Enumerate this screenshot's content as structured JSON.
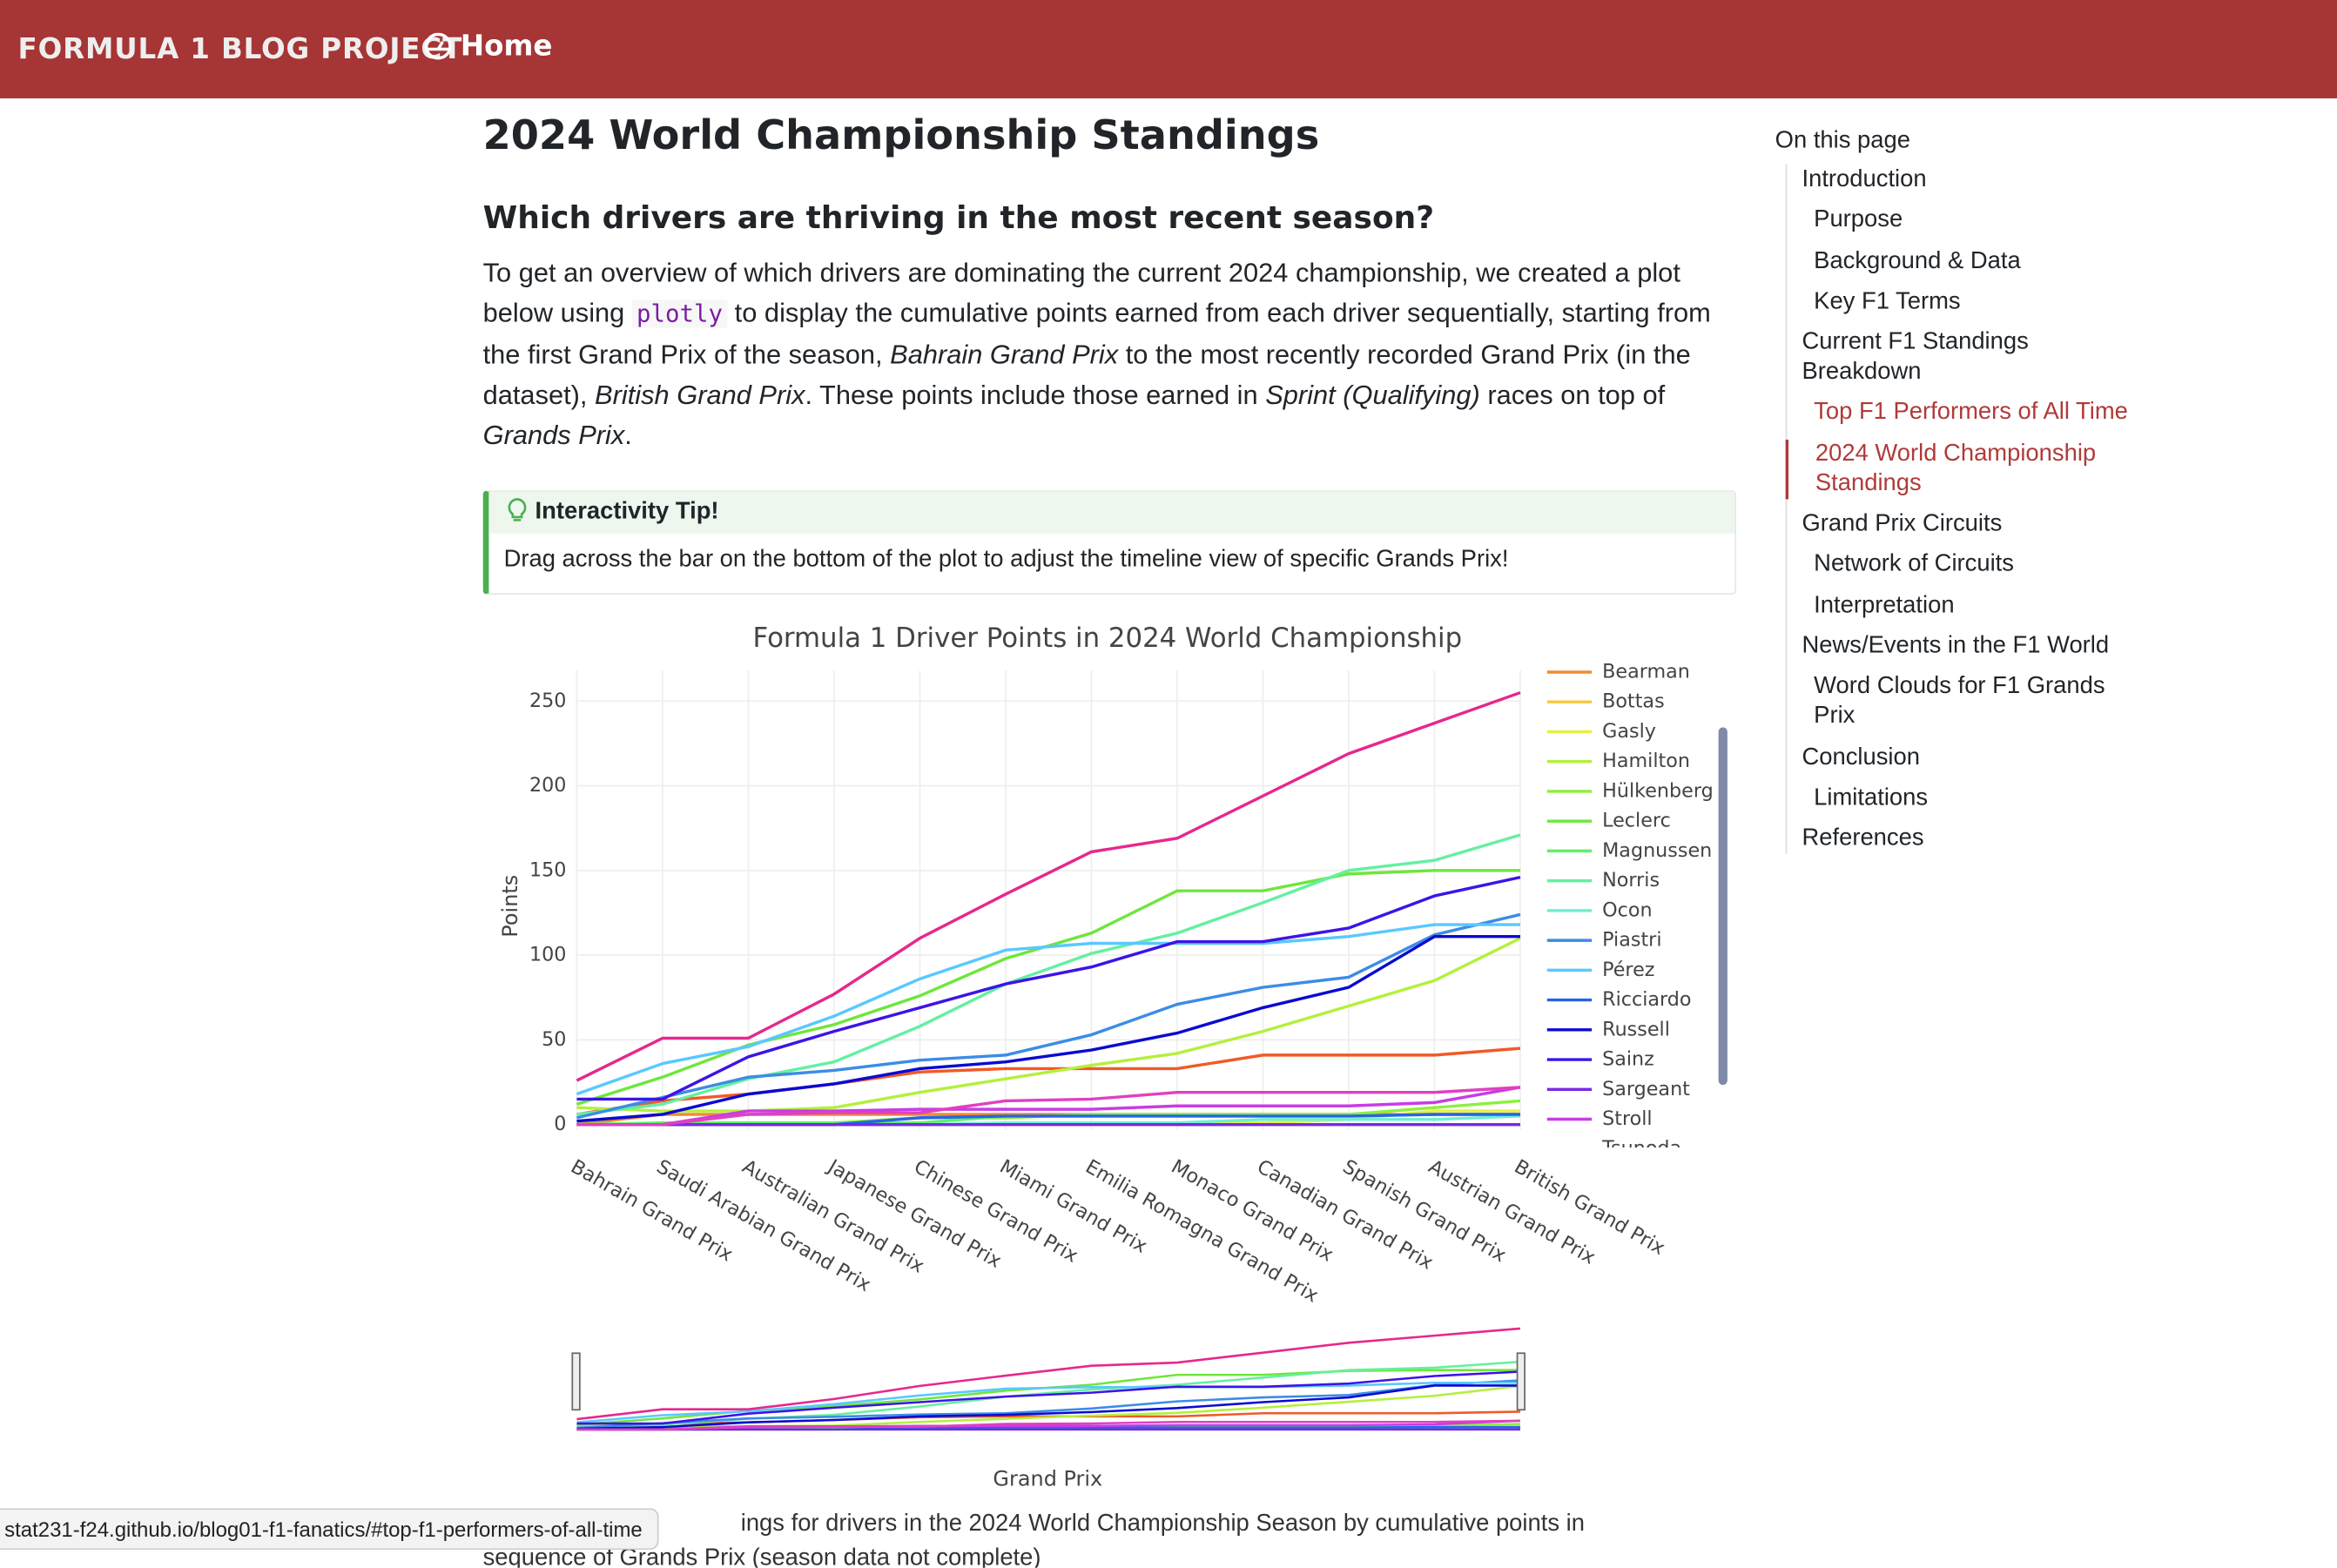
{
  "nav": {
    "brand": "FORMULA 1 BLOG PROJECT",
    "home": "Home"
  },
  "article": {
    "title": "2024 World Championship Standings",
    "subtitle": "Which drivers are thriving in the most recent season?",
    "intro": [
      "To get an overview of which drivers are dominating the current 2024 championship, we created a plot below using ",
      "plotly",
      " to display the cumulative points earned from each driver sequentially, starting from the first Grand Prix of the season, ",
      "Bahrain Grand Prix",
      " to the most recently recorded Grand Prix (in the dataset), ",
      "British Grand Prix",
      ". These points include those earned in ",
      "Sprint (Qualifying)",
      " races on top of ",
      "Grands Prix",
      "."
    ],
    "tip_title": "Interactivity Tip!",
    "tip_text": "Drag across the bar on the bottom of the plot to adjust the timeline view of specific Grands Prix!",
    "caption": [
      "ings for drivers in the 2024 World Championship Season by cumulative points in",
      "sequence of Grands Prix (season data not complete)"
    ]
  },
  "chart": {
    "type": "line",
    "title": "Formula 1 Driver Points in 2024 World Championship",
    "xlabel": "Grand Prix",
    "ylabel": "Points",
    "categories": [
      "Bahrain Grand Prix",
      "Saudi Arabian Grand Prix",
      "Australian Grand Prix",
      "Japanese Grand Prix",
      "Chinese Grand Prix",
      "Miami Grand Prix",
      "Emilia Romagna Grand Prix",
      "Monaco Grand Prix",
      "Canadian Grand Prix",
      "Spanish Grand Prix",
      "Austrian Grand Prix",
      "British Grand Prix"
    ],
    "ylim": [
      -3,
      268
    ],
    "yticks": [
      0,
      50,
      100,
      150,
      200,
      250
    ],
    "grid": true,
    "series": [
      {
        "color": "#f05a28",
        "values": [
          6,
          14,
          18,
          24,
          31,
          33,
          33,
          33,
          41,
          41,
          41,
          45
        ]
      },
      {
        "name": "Bearman",
        "color": "#f08c30",
        "values": [
          0,
          6,
          6,
          6,
          6,
          6,
          6,
          6,
          6,
          6,
          6,
          6
        ]
      },
      {
        "name": "Bottas",
        "color": "#f5c842",
        "values": [
          0,
          0,
          0,
          0,
          0,
          0,
          0,
          0,
          0,
          0,
          0,
          0
        ]
      },
      {
        "name": "Gasly",
        "color": "#e6f040",
        "values": [
          0,
          0,
          0,
          0,
          0,
          0,
          0,
          1,
          1,
          3,
          8,
          8
        ]
      },
      {
        "name": "Hamilton",
        "color": "#b4f03c",
        "values": [
          10,
          8,
          8,
          10,
          19,
          27,
          35,
          42,
          55,
          70,
          85,
          110
        ]
      },
      {
        "name": "Hülkenberg",
        "color": "#8cf03c",
        "values": [
          0,
          0,
          1,
          1,
          4,
          4,
          6,
          6,
          6,
          6,
          10,
          14
        ]
      },
      {
        "name": "Leclerc",
        "color": "#6ee63c",
        "values": [
          12,
          28,
          47,
          59,
          76,
          98,
          113,
          138,
          138,
          148,
          150,
          150
        ]
      },
      {
        "name": "Magnussen",
        "color": "#5ef06a",
        "values": [
          0,
          1,
          1,
          1,
          1,
          5,
          5,
          5,
          5,
          5,
          6,
          6
        ]
      },
      {
        "name": "Norris",
        "color": "#64f0a0",
        "values": [
          6,
          12,
          27,
          37,
          58,
          83,
          101,
          113,
          131,
          150,
          156,
          171
        ]
      },
      {
        "name": "Ocon",
        "color": "#6ef0d2",
        "values": [
          0,
          0,
          0,
          0,
          0,
          1,
          1,
          1,
          3,
          3,
          3,
          5
        ]
      },
      {
        "name": "Piastri",
        "color": "#3c8ce6",
        "values": [
          4,
          16,
          28,
          32,
          38,
          41,
          53,
          71,
          81,
          87,
          112,
          124
        ]
      },
      {
        "name": "Pérez",
        "color": "#5ac8ff",
        "values": [
          18,
          36,
          46,
          64,
          86,
          103,
          107,
          107,
          107,
          111,
          118,
          118
        ]
      },
      {
        "name": "Ricciardo",
        "color": "#2864e6",
        "values": [
          0,
          0,
          0,
          0,
          4,
          5,
          5,
          5,
          5,
          5,
          6,
          6
        ]
      },
      {
        "name": "Russell",
        "color": "#0a0ad2",
        "values": [
          2,
          6,
          18,
          24,
          33,
          37,
          44,
          54,
          69,
          81,
          111,
          111
        ]
      },
      {
        "name": "Sainz",
        "color": "#3c14e6",
        "values": [
          15,
          15,
          40,
          55,
          69,
          83,
          93,
          108,
          108,
          116,
          135,
          146
        ]
      },
      {
        "name": "Sargeant",
        "color": "#7828e6",
        "values": [
          0,
          0,
          0,
          0,
          0,
          0,
          0,
          0,
          0,
          0,
          0,
          0
        ]
      },
      {
        "name": "Stroll",
        "color": "#c83ce6",
        "values": [
          0,
          0,
          8,
          8,
          9,
          9,
          9,
          11,
          11,
          11,
          13,
          22
        ]
      },
      {
        "name": "Tsunoda",
        "color": "#e040c0",
        "values": [
          0,
          0,
          6,
          7,
          7,
          14,
          15,
          19,
          19,
          19,
          19,
          22
        ]
      },
      {
        "color": "#e6288c",
        "values": [
          26,
          51,
          51,
          77,
          110,
          136,
          161,
          169,
          194,
          219,
          237,
          255
        ]
      }
    ]
  },
  "toc": {
    "title": "On this page",
    "items": [
      {
        "text": "Introduction",
        "level": 0
      },
      {
        "text": "Purpose",
        "level": 1
      },
      {
        "text": "Background & Data",
        "level": 1
      },
      {
        "text": "Key F1 Terms",
        "level": 1
      },
      {
        "text": "Current F1 Standings Breakdown",
        "level": 0
      },
      {
        "text": "Top F1 Performers of All Time",
        "level": 1,
        "highlight": true
      },
      {
        "text": "2024 World Championship Standings",
        "level": 1,
        "highlight": true,
        "current": true
      },
      {
        "text": "Grand Prix Circuits",
        "level": 0
      },
      {
        "text": "Network of Circuits",
        "level": 1
      },
      {
        "text": "Interpretation",
        "level": 1
      },
      {
        "text": "News/Events in the F1 World",
        "level": 0
      },
      {
        "text": "Word Clouds for F1 Grands Prix",
        "level": 1
      },
      {
        "text": "Conclusion",
        "level": 0
      },
      {
        "text": "Limitations",
        "level": 1
      },
      {
        "text": "References",
        "level": 0
      }
    ]
  },
  "status": "stat231-f24.github.io/blog01-f1-fanatics/#top-f1-performers-of-all-time"
}
